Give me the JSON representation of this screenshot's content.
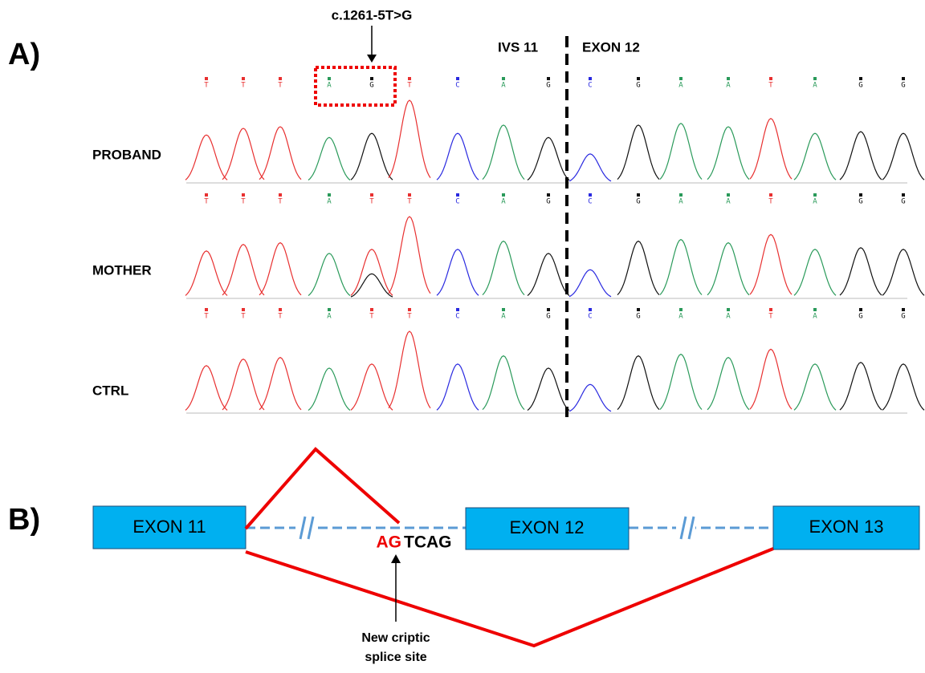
{
  "panel_a": {
    "label": "A)",
    "mutation": "c.1261-5T>G",
    "intron": "IVS 11",
    "exon": "EXON 12",
    "tracks": [
      {
        "name": "PROBAND",
        "bases": [
          "T",
          "T",
          "T",
          "A",
          "G",
          "T",
          "C",
          "A",
          "G",
          "C",
          "G",
          "A",
          "A",
          "T",
          "A",
          "G",
          "G"
        ]
      },
      {
        "name": "MOTHER",
        "bases": [
          "T",
          "T",
          "T",
          "A",
          "T",
          "T",
          "C",
          "A",
          "G",
          "C",
          "G",
          "A",
          "A",
          "T",
          "A",
          "G",
          "G"
        ]
      },
      {
        "name": "CTRL",
        "bases": [
          "T",
          "T",
          "T",
          "A",
          "T",
          "T",
          "C",
          "A",
          "G",
          "C",
          "G",
          "A",
          "A",
          "T",
          "A",
          "G",
          "G"
        ]
      }
    ]
  },
  "panel_b": {
    "label": "B)",
    "exons": [
      "EXON 11",
      "EXON 12",
      "EXON 13"
    ],
    "site_red": "AG",
    "site_black": "TCAG",
    "note": [
      "New criptic",
      "splice site"
    ]
  }
}
